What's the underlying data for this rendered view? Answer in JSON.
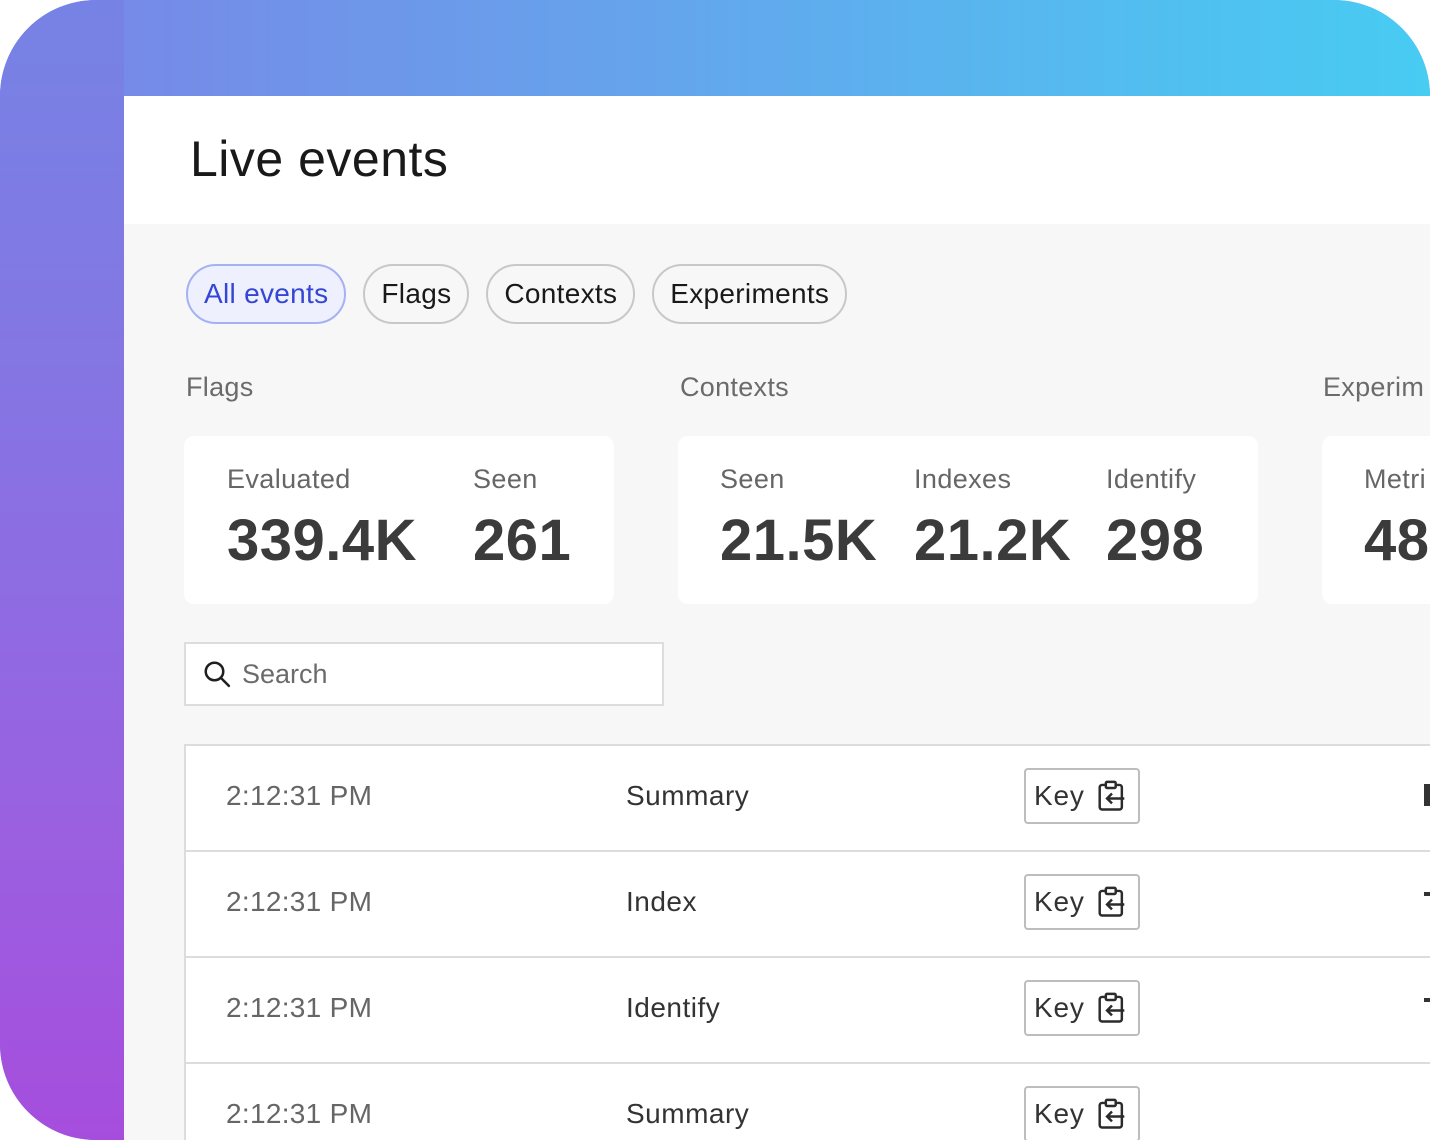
{
  "window": {
    "title": "Live events"
  },
  "tabs": [
    {
      "label": "All events",
      "active": true
    },
    {
      "label": "Flags",
      "active": false
    },
    {
      "label": "Contexts",
      "active": false
    },
    {
      "label": "Experiments",
      "active": false
    }
  ],
  "sections": {
    "flags": {
      "label": "Flags",
      "metrics": [
        {
          "label": "Evaluated",
          "value": "339.4K"
        },
        {
          "label": "Seen",
          "value": "261"
        }
      ]
    },
    "contexts": {
      "label": "Contexts",
      "metrics": [
        {
          "label": "Seen",
          "value": "21.5K"
        },
        {
          "label": "Indexes",
          "value": "21.2K"
        },
        {
          "label": "Identify",
          "value": "298"
        }
      ]
    },
    "experiments": {
      "label": "Experim",
      "metrics": [
        {
          "label": "Metri",
          "value": "48"
        }
      ]
    }
  },
  "search": {
    "placeholder": "Search",
    "value": ""
  },
  "events": [
    {
      "time": "2:12:31 PM",
      "kind": "Summary",
      "key_label": "Key"
    },
    {
      "time": "2:12:31 PM",
      "kind": "Index",
      "key_label": "Key"
    },
    {
      "time": "2:12:31 PM",
      "kind": "Identify",
      "key_label": "Key"
    },
    {
      "time": "2:12:31 PM",
      "kind": "Summary",
      "key_label": "Key"
    }
  ],
  "icons": {
    "search": "search-icon",
    "copy": "clipboard-copy-icon"
  },
  "colors": {
    "accent": "#3446d6",
    "active_tab_bg": "#eef0fd",
    "active_tab_border": "#a4b1f4",
    "gradient_start": "#7a84e6",
    "gradient_end": "#47ccf2",
    "gradient_bottom": "#a64dde"
  }
}
